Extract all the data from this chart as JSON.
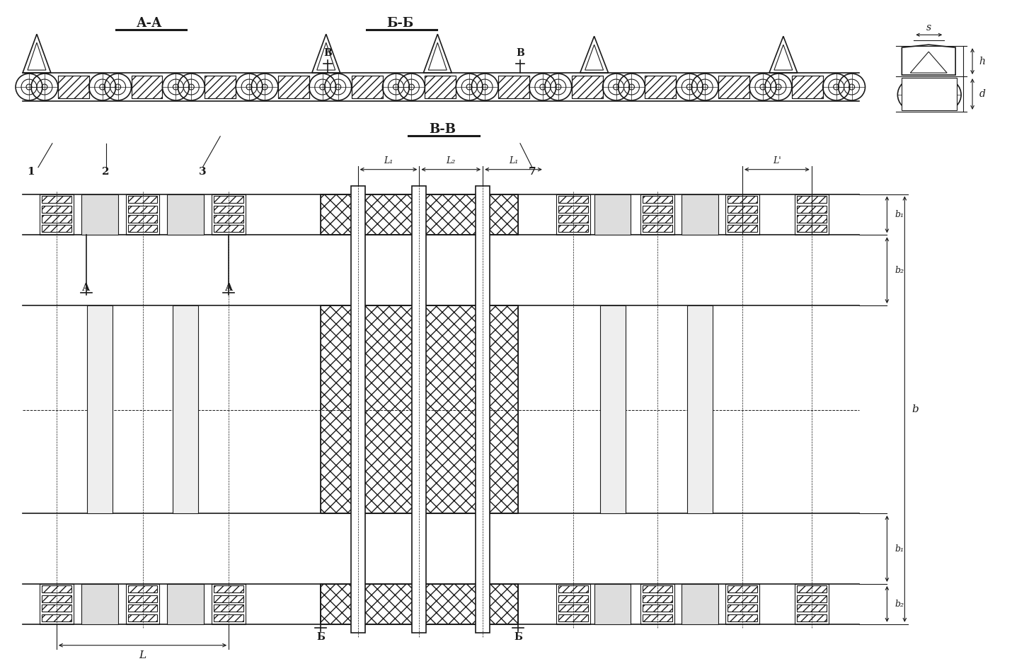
{
  "bg_color": "#ffffff",
  "line_color": "#1a1a1a",
  "figsize": [
    14.3,
    9.42
  ],
  "dpi": 100,
  "section_AA": "А-А",
  "section_BB": "Б-Б",
  "section_VV": "В-В",
  "label_A": "А",
  "label_B": "Б",
  "label_V": "В",
  "part1": "1",
  "part2": "2",
  "part3": "3",
  "part7": "7",
  "dim_s": "s",
  "dim_h": "h",
  "dim_d": "d",
  "dim_b": "b",
  "dim_b1": "b₁",
  "dim_b2": "b₂",
  "dim_L": "L",
  "dim_L1": "L₁",
  "dim_L2": "L₂",
  "dim_Lp": "L'"
}
